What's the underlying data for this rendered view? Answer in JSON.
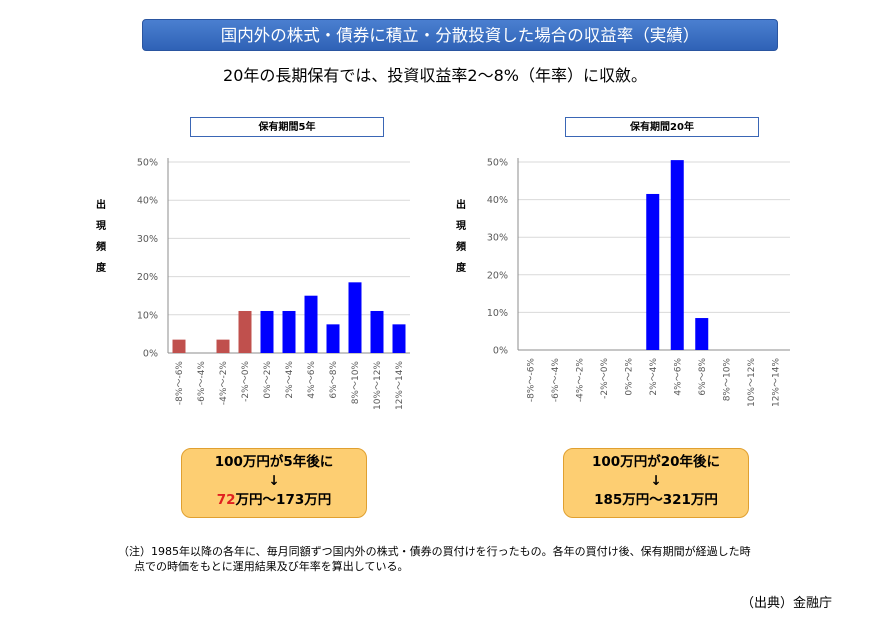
{
  "header": {
    "title": "国内外の株式・債券に積立・分散投資した場合の収益率（実績）",
    "subtitle": "20年の長期保有では、投資収益率2～8%（年率）に収斂。"
  },
  "chart_data": [
    {
      "type": "bar",
      "title": "保有期間5年",
      "ylabel": "出現頻度",
      "ylim": [
        0,
        50
      ],
      "yticks": [
        "0%",
        "10%",
        "20%",
        "30%",
        "40%",
        "50%"
      ],
      "categories": [
        "-8%～-6%",
        "-6%～-4%",
        "-4%～-2%",
        "-2%～0%",
        "0%～2%",
        "2%～4%",
        "4%～6%",
        "6%～8%",
        "8%～10%",
        "10%～12%",
        "12%～14%"
      ],
      "values": [
        3.5,
        0,
        3.5,
        11,
        11,
        11,
        15,
        7.5,
        18.5,
        11,
        7.5
      ],
      "colors": [
        "#c0504d",
        "#c0504d",
        "#c0504d",
        "#c0504d",
        "#0000ff",
        "#0000ff",
        "#0000ff",
        "#0000ff",
        "#0000ff",
        "#0000ff",
        "#0000ff"
      ],
      "grid": true
    },
    {
      "type": "bar",
      "title": "保有期間20年",
      "ylabel": "出現頻度",
      "ylim": [
        0,
        50
      ],
      "yticks": [
        "0%",
        "10%",
        "20%",
        "30%",
        "40%",
        "50%"
      ],
      "categories": [
        "-8%～-6%",
        "-6%～-4%",
        "-4%～-2%",
        "-2%～0%",
        "0%～2%",
        "2%～4%",
        "4%～6%",
        "6%～8%",
        "8%～10%",
        "10%～12%",
        "12%～14%"
      ],
      "values": [
        0,
        0,
        0,
        0,
        0,
        41.5,
        50.5,
        8.5,
        0,
        0,
        0
      ],
      "colors": [
        "#0000ff",
        "#0000ff",
        "#0000ff",
        "#0000ff",
        "#0000ff",
        "#0000ff",
        "#0000ff",
        "#0000ff",
        "#0000ff",
        "#0000ff",
        "#0000ff"
      ],
      "grid": true
    }
  ],
  "callouts": {
    "left": {
      "line1": "100万円が5年後に",
      "arrow": "↓",
      "low": "72",
      "rest": "万円～173万円"
    },
    "right": {
      "line1": "100万円が20年後に",
      "arrow": "↓",
      "line3": "185万円～321万円"
    }
  },
  "note": {
    "line1": "（注）1985年以降の各年に、毎月同額ずつ国内外の株式・債券の買付けを行ったもの。各年の買付け後、保有期間が経過した時",
    "line2": "点での時価をもとに運用結果及び年率を算出している。"
  },
  "source": "（出典）金融庁"
}
